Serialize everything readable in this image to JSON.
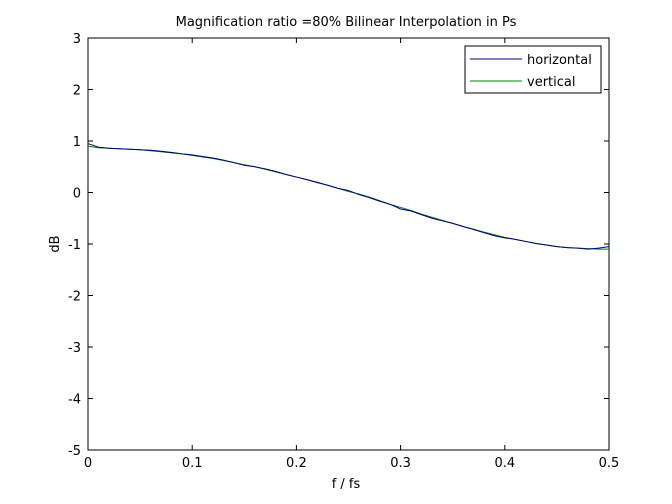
{
  "chart_data": {
    "type": "line",
    "title": "Magnification ratio =80% Bilinear Interpolation in Ps",
    "xlabel": "f / fs",
    "ylabel": "dB",
    "xlim": [
      0,
      0.5
    ],
    "ylim": [
      -5,
      3
    ],
    "xticks": [
      0,
      0.1,
      0.2,
      0.3,
      0.4,
      0.5
    ],
    "xtick_labels": [
      "0",
      "0.1",
      "0.2",
      "0.3",
      "0.4",
      "0.5"
    ],
    "yticks": [
      3,
      2,
      1,
      0,
      -1,
      -2,
      -3,
      -4,
      -5
    ],
    "ytick_labels": [
      "3",
      "2",
      "1",
      "0",
      "-1",
      "-2",
      "-3",
      "-4",
      "-5"
    ],
    "grid": false,
    "legend_position": "top-right",
    "series": [
      {
        "name": "horizontal",
        "color": "#000080",
        "x": [
          0,
          0.01,
          0.02,
          0.03,
          0.04,
          0.05,
          0.06,
          0.07,
          0.08,
          0.09,
          0.1,
          0.11,
          0.12,
          0.13,
          0.14,
          0.15,
          0.16,
          0.17,
          0.18,
          0.19,
          0.2,
          0.21,
          0.22,
          0.23,
          0.24,
          0.25,
          0.26,
          0.27,
          0.28,
          0.29,
          0.3,
          0.31,
          0.32,
          0.33,
          0.34,
          0.35,
          0.36,
          0.37,
          0.38,
          0.39,
          0.4,
          0.41,
          0.42,
          0.43,
          0.44,
          0.45,
          0.46,
          0.47,
          0.48,
          0.49,
          0.5
        ],
        "y": [
          0.95,
          0.88,
          0.86,
          0.85,
          0.84,
          0.83,
          0.82,
          0.8,
          0.78,
          0.75,
          0.73,
          0.7,
          0.67,
          0.63,
          0.58,
          0.53,
          0.5,
          0.46,
          0.41,
          0.35,
          0.3,
          0.25,
          0.2,
          0.14,
          0.08,
          0.04,
          -0.04,
          -0.1,
          -0.17,
          -0.23,
          -0.32,
          -0.36,
          -0.43,
          -0.5,
          -0.55,
          -0.6,
          -0.66,
          -0.72,
          -0.78,
          -0.84,
          -0.88,
          -0.91,
          -0.95,
          -0.99,
          -1.02,
          -1.05,
          -1.07,
          -1.08,
          -1.1,
          -1.08,
          -1.05
        ]
      },
      {
        "name": "vertical",
        "color": "#008000",
        "x": [
          0,
          0.01,
          0.02,
          0.03,
          0.04,
          0.05,
          0.06,
          0.07,
          0.08,
          0.09,
          0.1,
          0.11,
          0.12,
          0.13,
          0.14,
          0.15,
          0.16,
          0.17,
          0.18,
          0.19,
          0.2,
          0.21,
          0.22,
          0.23,
          0.24,
          0.25,
          0.26,
          0.27,
          0.28,
          0.29,
          0.3,
          0.31,
          0.32,
          0.33,
          0.34,
          0.35,
          0.36,
          0.37,
          0.38,
          0.39,
          0.4,
          0.41,
          0.42,
          0.43,
          0.44,
          0.45,
          0.46,
          0.47,
          0.48,
          0.49,
          0.5
        ],
        "y": [
          0.9,
          0.87,
          0.86,
          0.85,
          0.84,
          0.83,
          0.81,
          0.79,
          0.77,
          0.75,
          0.72,
          0.69,
          0.66,
          0.62,
          0.58,
          0.54,
          0.5,
          0.45,
          0.4,
          0.35,
          0.3,
          0.25,
          0.19,
          0.14,
          0.08,
          0.02,
          -0.03,
          -0.09,
          -0.16,
          -0.23,
          -0.29,
          -0.35,
          -0.42,
          -0.48,
          -0.54,
          -0.6,
          -0.66,
          -0.71,
          -0.77,
          -0.82,
          -0.87,
          -0.91,
          -0.95,
          -0.99,
          -1.02,
          -1.05,
          -1.07,
          -1.08,
          -1.09,
          -1.1,
          -1.1
        ]
      }
    ]
  }
}
